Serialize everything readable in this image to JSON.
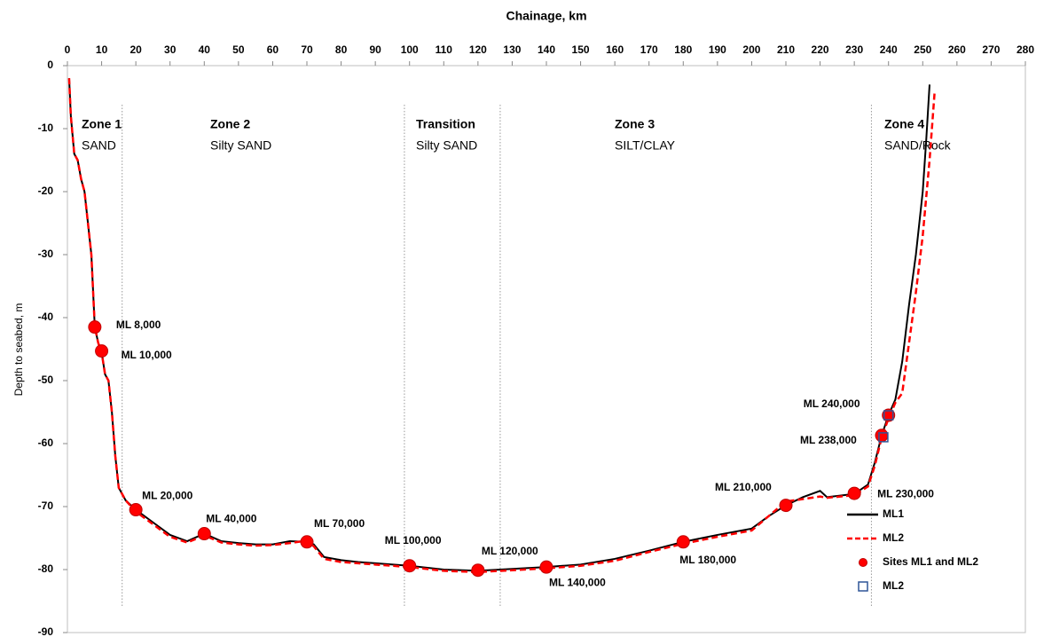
{
  "chart_data": {
    "type": "line",
    "xlabel": "Chainage, km",
    "ylabel": "Depth to seabed, m",
    "xlim": [
      0,
      280
    ],
    "xticks": [
      0,
      10,
      20,
      30,
      40,
      50,
      60,
      70,
      80,
      90,
      100,
      110,
      120,
      130,
      140,
      150,
      160,
      170,
      180,
      190,
      200,
      210,
      220,
      230,
      240,
      250,
      260,
      270,
      280
    ],
    "ylim": [
      -90,
      0
    ],
    "yticks": [
      0,
      -10,
      -20,
      -30,
      -40,
      -50,
      -60,
      -70,
      -80,
      -90
    ],
    "zone_boundaries": [
      16,
      98.5,
      126.5,
      235
    ],
    "zones": [
      {
        "name": "Zone 1",
        "material": "SAND"
      },
      {
        "name": "Zone 2",
        "material": "Silty  SAND"
      },
      {
        "name": "Transition",
        "material": "Silty  SAND"
      },
      {
        "name": "Zone 3",
        "material": "SILT/CLAY"
      },
      {
        "name": "Zone 4",
        "material": "SAND/Rock"
      }
    ],
    "series": [
      {
        "name": "ML1",
        "color": "#000000",
        "dashed": false,
        "x": [
          0.5,
          1,
          2,
          3,
          4,
          5,
          6,
          7,
          8,
          9,
          10,
          11,
          12,
          13,
          14,
          15,
          17,
          20,
          25,
          30,
          35,
          40,
          45,
          50,
          55,
          60,
          65,
          70,
          72,
          75,
          80,
          85,
          90,
          100,
          110,
          120,
          130,
          140,
          150,
          160,
          170,
          180,
          190,
          200,
          205,
          210,
          215,
          220,
          222,
          230,
          234,
          236,
          238,
          240,
          242,
          244,
          246,
          248,
          250,
          251,
          252
        ],
        "values": [
          -2,
          -8,
          -14,
          -15,
          -18,
          -20,
          -25,
          -30,
          -41.5,
          -44,
          -45.5,
          -49,
          -50,
          -55,
          -62,
          -67,
          -69,
          -70.5,
          -72.5,
          -74.5,
          -75.5,
          -74.3,
          -75.5,
          -75.8,
          -76,
          -76,
          -75.5,
          -75.6,
          -76,
          -78,
          -78.5,
          -78.8,
          -79,
          -79.4,
          -80,
          -80.2,
          -79.9,
          -79.6,
          -79.2,
          -78.3,
          -77,
          -75.6,
          -74.5,
          -73.5,
          -71.5,
          -69.8,
          -68.5,
          -67.5,
          -68.5,
          -68,
          -66.5,
          -63,
          -58.7,
          -55.5,
          -53,
          -47,
          -38,
          -30,
          -20,
          -12,
          -3
        ]
      },
      {
        "name": "ML2",
        "color": "#ff0000",
        "dashed": true,
        "x": [
          0.5,
          1,
          2,
          3,
          4,
          5,
          6,
          7,
          8,
          9,
          10,
          11,
          12,
          13,
          14,
          15,
          17,
          20,
          25,
          30,
          35,
          40,
          45,
          50,
          55,
          60,
          65,
          70,
          72,
          75,
          80,
          85,
          90,
          100,
          110,
          120,
          130,
          140,
          150,
          160,
          170,
          180,
          190,
          200,
          205,
          210,
          215,
          220,
          222,
          230,
          234,
          236,
          238,
          240,
          242,
          244,
          246,
          248,
          250,
          252,
          253.5
        ],
        "values": [
          -2,
          -8,
          -14,
          -15,
          -18,
          -20,
          -25,
          -30,
          -41.5,
          -44,
          -45.5,
          -49,
          -50,
          -55,
          -62,
          -67,
          -69,
          -70.8,
          -72.8,
          -74.8,
          -75.7,
          -74.6,
          -75.7,
          -76,
          -76.2,
          -76.1,
          -75.8,
          -75.4,
          -76.3,
          -78.3,
          -78.8,
          -79,
          -79.2,
          -79.6,
          -80.2,
          -80.4,
          -80.1,
          -79.8,
          -79.4,
          -78.6,
          -77.2,
          -75.9,
          -74.8,
          -73.8,
          -71.5,
          -69.2,
          -68.8,
          -68.4,
          -68.6,
          -68.2,
          -66.8,
          -63.5,
          -59,
          -56,
          -53.5,
          -52,
          -44,
          -36,
          -27,
          -15,
          -4
        ]
      }
    ],
    "markers": [
      {
        "name": "Sites ML1 and ML2",
        "color": "#ff0000",
        "shape": "circle",
        "x": [
          8,
          10,
          20,
          40,
          70,
          100,
          120,
          140,
          180,
          210,
          230,
          238,
          240
        ],
        "values": [
          -41.5,
          -45.3,
          -70.5,
          -74.3,
          -75.6,
          -79.4,
          -80.1,
          -79.6,
          -75.6,
          -69.8,
          -67.9,
          -58.7,
          -55.5
        ],
        "labels": [
          "ML 8,000",
          "ML 10,000",
          "ML 20,000",
          "ML 40,000",
          "ML 70,000",
          "ML 100,000",
          "ML 120,000",
          "ML 140,000",
          "ML 180,000",
          "ML 210,000",
          "ML 230,000",
          "ML 238,000",
          "ML 240,000"
        ]
      },
      {
        "name": "ML2",
        "color": "#2f5597",
        "shape": "square",
        "x": [
          238.5,
          240
        ],
        "values": [
          -59,
          -55.5
        ]
      }
    ]
  }
}
